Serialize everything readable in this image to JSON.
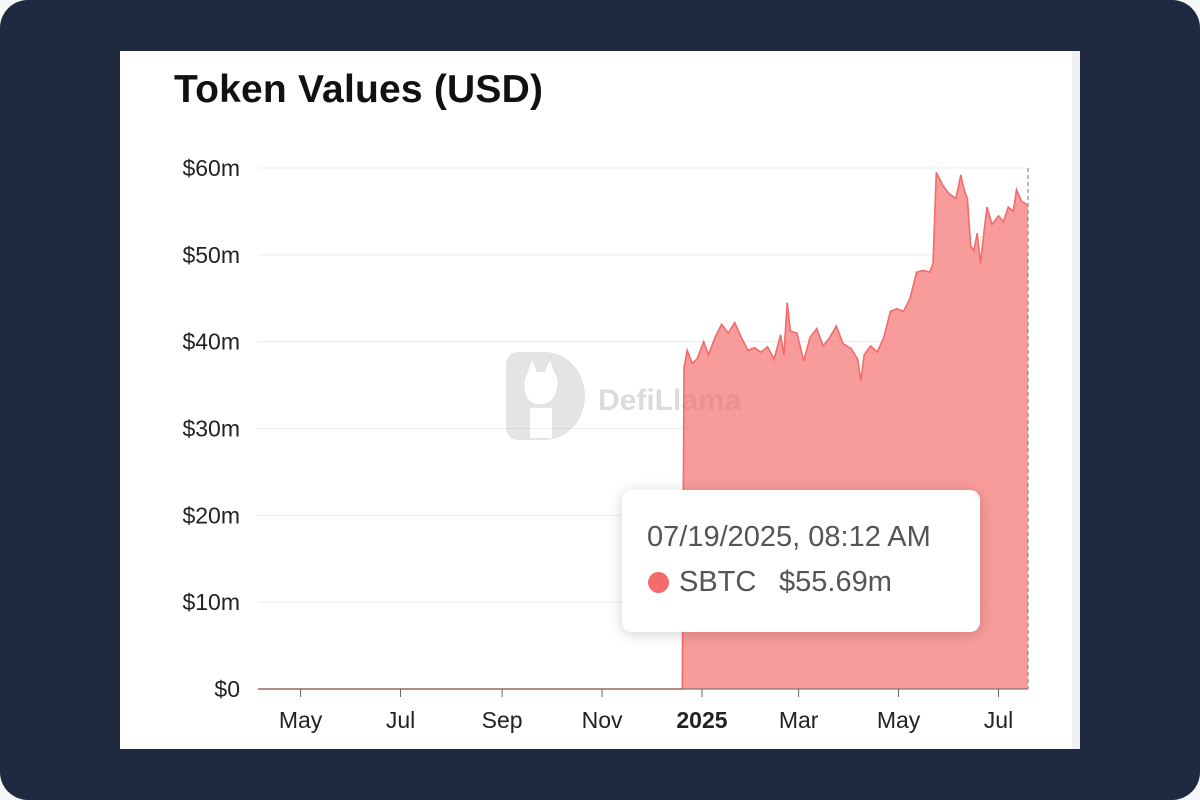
{
  "chart_data": {
    "type": "area",
    "title": "Token Values (USD)",
    "y_ticks": [
      "$0",
      "$10m",
      "$20m",
      "$30m",
      "$40m",
      "$50m",
      "$60m"
    ],
    "ylim": [
      0,
      60
    ],
    "y_unit": "USD millions",
    "x_ticks": [
      {
        "label": "May",
        "date": "2024-05-01",
        "bold": false
      },
      {
        "label": "Jul",
        "date": "2024-07-01",
        "bold": false
      },
      {
        "label": "Sep",
        "date": "2024-09-01",
        "bold": false
      },
      {
        "label": "Nov",
        "date": "2024-11-01",
        "bold": false
      },
      {
        "label": "2025",
        "date": "2025-01-01",
        "bold": true
      },
      {
        "label": "Mar",
        "date": "2025-03-01",
        "bold": false
      },
      {
        "label": "May",
        "date": "2025-05-01",
        "bold": false
      },
      {
        "label": "Jul",
        "date": "2025-07-01",
        "bold": false
      }
    ],
    "xlim": [
      "2024-04-05",
      "2025-07-19"
    ],
    "grid": true,
    "series": [
      {
        "name": "SBTC",
        "color": "#f46b6b",
        "points": [
          [
            "2024-04-05",
            0
          ],
          [
            "2024-12-20",
            0
          ],
          [
            "2024-12-21",
            37
          ],
          [
            "2024-12-23",
            39
          ],
          [
            "2024-12-26",
            37.5
          ],
          [
            "2024-12-29",
            38
          ],
          [
            "2025-01-02",
            40
          ],
          [
            "2025-01-05",
            38.5
          ],
          [
            "2025-01-09",
            40.5
          ],
          [
            "2025-01-13",
            42
          ],
          [
            "2025-01-17",
            41
          ],
          [
            "2025-01-21",
            42.2
          ],
          [
            "2025-01-25",
            40.5
          ],
          [
            "2025-01-29",
            39
          ],
          [
            "2025-02-02",
            39.3
          ],
          [
            "2025-02-06",
            38.8
          ],
          [
            "2025-02-10",
            39.4
          ],
          [
            "2025-02-14",
            38
          ],
          [
            "2025-02-18",
            40.8
          ],
          [
            "2025-02-20",
            38.5
          ],
          [
            "2025-02-22",
            44.5
          ],
          [
            "2025-02-24",
            41.2
          ],
          [
            "2025-02-28",
            41
          ],
          [
            "2025-03-04",
            37.8
          ],
          [
            "2025-03-08",
            40.5
          ],
          [
            "2025-03-12",
            41.5
          ],
          [
            "2025-03-16",
            39.5
          ],
          [
            "2025-03-20",
            40.5
          ],
          [
            "2025-03-24",
            41.8
          ],
          [
            "2025-03-28",
            39.8
          ],
          [
            "2025-04-02",
            39.2
          ],
          [
            "2025-04-06",
            38
          ],
          [
            "2025-04-08",
            35.5
          ],
          [
            "2025-04-10",
            38.5
          ],
          [
            "2025-04-14",
            39.5
          ],
          [
            "2025-04-18",
            38.8
          ],
          [
            "2025-04-22",
            40.5
          ],
          [
            "2025-04-26",
            43.5
          ],
          [
            "2025-04-30",
            43.8
          ],
          [
            "2025-05-04",
            43.5
          ],
          [
            "2025-05-08",
            45
          ],
          [
            "2025-05-12",
            48
          ],
          [
            "2025-05-16",
            48.2
          ],
          [
            "2025-05-20",
            48
          ],
          [
            "2025-05-22",
            49
          ],
          [
            "2025-05-24",
            59.5
          ],
          [
            "2025-05-28",
            58
          ],
          [
            "2025-06-01",
            57
          ],
          [
            "2025-06-05",
            56.5
          ],
          [
            "2025-06-08",
            59.2
          ],
          [
            "2025-06-10",
            57.5
          ],
          [
            "2025-06-12",
            56.5
          ],
          [
            "2025-06-14",
            51
          ],
          [
            "2025-06-16",
            50.5
          ],
          [
            "2025-06-18",
            52.5
          ],
          [
            "2025-06-20",
            49
          ],
          [
            "2025-06-22",
            52.5
          ],
          [
            "2025-06-24",
            55.5
          ],
          [
            "2025-06-27",
            53.5
          ],
          [
            "2025-07-01",
            54.5
          ],
          [
            "2025-07-04",
            53.8
          ],
          [
            "2025-07-07",
            55.5
          ],
          [
            "2025-07-10",
            55
          ],
          [
            "2025-07-12",
            57.5
          ],
          [
            "2025-07-15",
            56.2
          ],
          [
            "2025-07-19",
            55.69
          ]
        ]
      }
    ]
  },
  "watermark": {
    "text": "DefiLlama",
    "icon": "llama-logo-icon"
  },
  "tooltip": {
    "date": "07/19/2025, 08:12 AM",
    "series": "SBTC",
    "value": "$55.69m",
    "dot_color": "#f46b6b"
  }
}
